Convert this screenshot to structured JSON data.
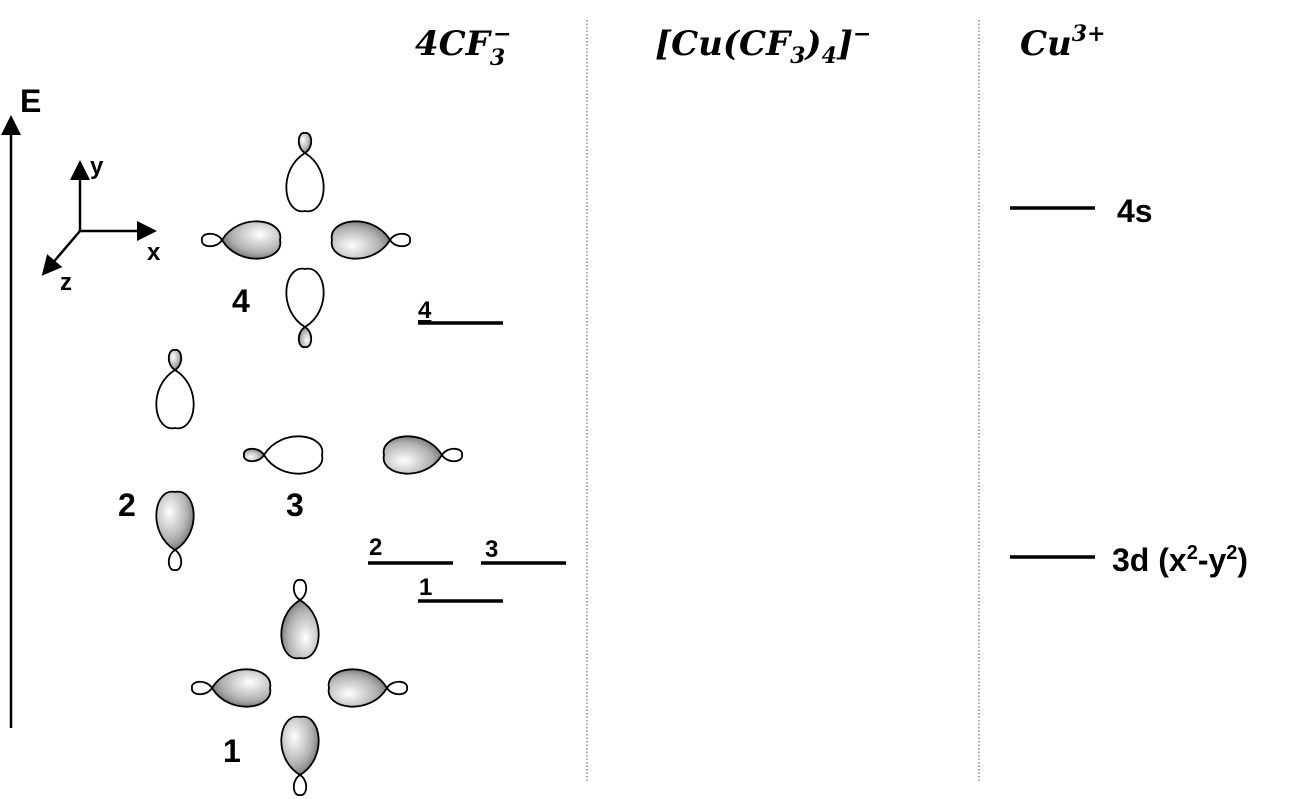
{
  "headers": {
    "ligands": {
      "base": "4CF",
      "sub": "3",
      "sup": "−"
    },
    "complex": {
      "base": "[Cu(CF",
      "sub": "3",
      "mid": ")",
      "sub2": "4",
      "end": "]",
      "sup": "−"
    },
    "metal": {
      "base": "Cu",
      "sup": "3+"
    }
  },
  "energy_axis": "E",
  "coordinate_axes": {
    "y": "y",
    "x": "x",
    "z": "z"
  },
  "orbital_labels": [
    "4",
    "2",
    "3",
    "1"
  ],
  "ligand_levels": [
    "4",
    "2",
    "3",
    "1"
  ],
  "metal_levels": [
    {
      "parts": [
        "4s"
      ]
    },
    {
      "parts": [
        "3d (x",
        "2",
        "-y",
        "2",
        ")"
      ]
    }
  ]
}
